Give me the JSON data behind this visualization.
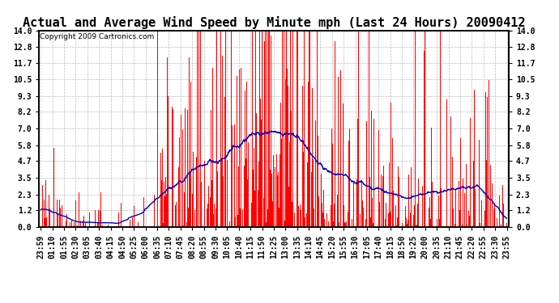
{
  "title": "Actual and Average Wind Speed by Minute mph (Last 24 Hours) 20090412",
  "copyright": "Copyright 2009 Cartronics.com",
  "yticks": [
    0.0,
    1.2,
    2.3,
    3.5,
    4.7,
    5.8,
    7.0,
    8.2,
    9.3,
    10.5,
    11.7,
    12.8,
    14.0
  ],
  "ylim": [
    0.0,
    14.0
  ],
  "bar_color": "#FF0000",
  "line_color": "#0000BB",
  "background_color": "#FFFFFF",
  "grid_color": "#AAAAAA",
  "title_fontsize": 11,
  "copyright_fontsize": 6.5,
  "tick_fontsize": 7,
  "num_minutes": 1440,
  "xtick_labels": [
    "23:59",
    "01:10",
    "01:55",
    "02:30",
    "03:05",
    "03:40",
    "04:15",
    "04:50",
    "05:25",
    "06:00",
    "06:35",
    "07:10",
    "07:45",
    "08:20",
    "08:55",
    "09:30",
    "10:05",
    "10:40",
    "11:15",
    "11:50",
    "12:25",
    "13:00",
    "13:35",
    "14:10",
    "14:45",
    "15:20",
    "15:55",
    "16:30",
    "17:05",
    "17:40",
    "18:15",
    "18:50",
    "19:25",
    "20:00",
    "20:35",
    "21:10",
    "21:45",
    "22:20",
    "22:55",
    "23:30",
    "23:55"
  ]
}
